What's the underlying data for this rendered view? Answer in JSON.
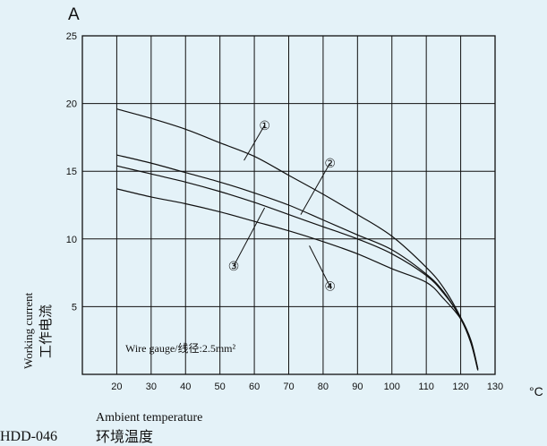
{
  "chart_data": {
    "type": "line",
    "y_unit": "A",
    "x_unit": "°C",
    "ylabel_en": "Working current",
    "ylabel_cn": "工作电流",
    "xlabel_en": "Ambient temperature",
    "xlabel_cn": "环境温度",
    "model": "HDD-046",
    "annotation": "Wire gauge/线径:2.5mm²",
    "xlim": [
      10,
      130
    ],
    "ylim": [
      0,
      25
    ],
    "x_ticks": [
      20,
      30,
      40,
      50,
      60,
      70,
      80,
      90,
      100,
      110,
      120,
      130
    ],
    "y_ticks": [
      5,
      10,
      15,
      20,
      25
    ],
    "grid": true,
    "series": [
      {
        "name": "①",
        "x": [
          20,
          30,
          40,
          50,
          60,
          70,
          80,
          90,
          100,
          110,
          115,
          120,
          123,
          125
        ],
        "y": [
          19.6,
          18.9,
          18.1,
          17.1,
          16.1,
          14.7,
          13.3,
          11.8,
          10.2,
          7.9,
          6.4,
          4.2,
          2.3,
          0.3
        ]
      },
      {
        "name": "②",
        "x": [
          20,
          30,
          40,
          50,
          60,
          70,
          80,
          90,
          100,
          110,
          115,
          120,
          123,
          125
        ],
        "y": [
          16.2,
          15.6,
          14.9,
          14.2,
          13.4,
          12.5,
          11.4,
          10.3,
          9.2,
          7.4,
          6.1,
          4.1,
          2.3,
          0.3
        ]
      },
      {
        "name": "③",
        "x": [
          20,
          30,
          40,
          50,
          60,
          70,
          80,
          90,
          100,
          110,
          115,
          120,
          123,
          125
        ],
        "y": [
          15.4,
          14.8,
          14.2,
          13.5,
          12.7,
          11.8,
          10.9,
          10.0,
          8.9,
          7.3,
          6.0,
          4.2,
          2.5,
          0.4
        ]
      },
      {
        "name": "④",
        "x": [
          20,
          30,
          40,
          50,
          60,
          70,
          80,
          90,
          100,
          110,
          115,
          120,
          123,
          125
        ],
        "y": [
          13.7,
          13.1,
          12.6,
          12.0,
          11.3,
          10.6,
          9.8,
          8.9,
          7.8,
          6.8,
          5.6,
          4.1,
          2.4,
          0.4
        ]
      }
    ],
    "labels": [
      {
        "text": "①",
        "x": 63,
        "y": 18.4,
        "lx": 57,
        "ly": 15.8
      },
      {
        "text": "②",
        "x": 82,
        "y": 15.6,
        "lx": 73.5,
        "ly": 11.8
      },
      {
        "text": "③",
        "x": 54,
        "y": 8.0,
        "lx": 63,
        "ly": 12.3
      },
      {
        "text": "④",
        "x": 82,
        "y": 6.5,
        "lx": 76,
        "ly": 9.5
      }
    ]
  }
}
